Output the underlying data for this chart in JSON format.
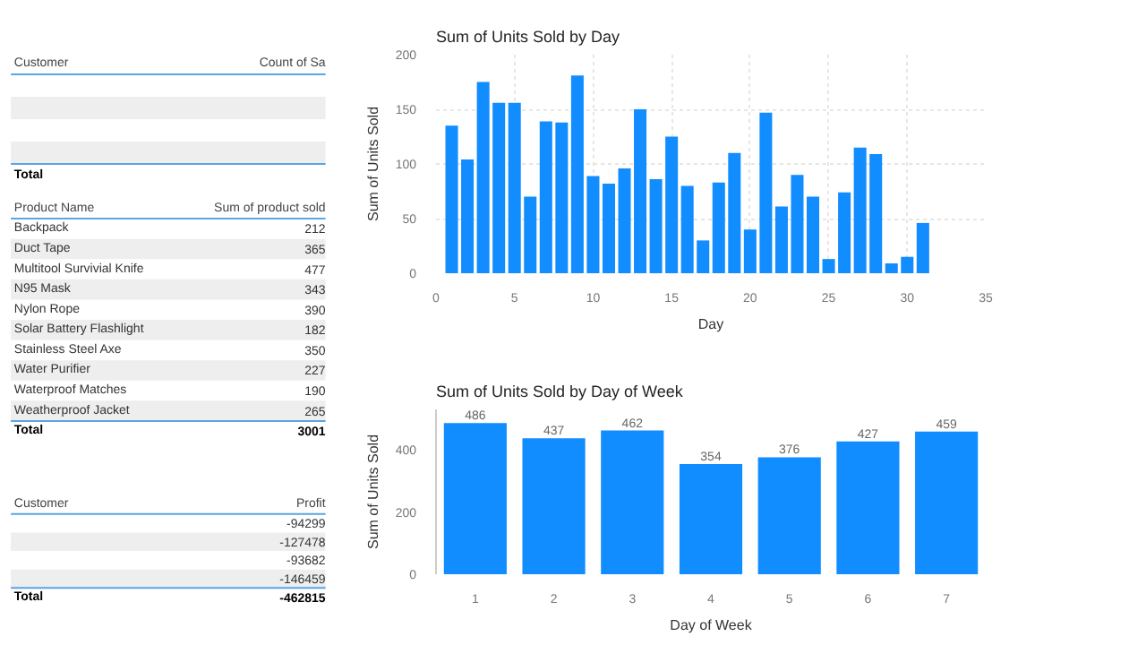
{
  "chart_data": [
    {
      "type": "other",
      "categories": [
        null,
        null,
        null,
        null
      ],
      "annotations": [
        "Customer",
        "Count of Sa",
        "Total"
      ]
    },
    {
      "type": "other",
      "categories": [
        "Backpack",
        "Duct Tape",
        "Multitool Survivial Knife",
        "N95 Mask",
        "Nylon Rope",
        "Solar Battery Flashlight",
        "Stainless Steel Axe",
        "Water Purifier",
        "Waterproof Matches",
        "Weatherproof Jacket"
      ],
      "values": [
        212,
        365,
        477,
        343,
        390,
        182,
        350,
        227,
        190,
        265
      ],
      "data_labels": true,
      "annotations": [
        "Product Name",
        "Sum of product sold",
        "Total",
        "3001"
      ]
    },
    {
      "type": "other",
      "categories": [
        null,
        null,
        null,
        null
      ],
      "values": [
        -94299,
        -127478,
        -93682,
        -146459
      ],
      "data_labels": true,
      "annotations": [
        "Customer",
        "Profit",
        "Total",
        "-462815"
      ]
    },
    {
      "type": "bar",
      "title": "Sum of Units Sold by Day",
      "xlabel": "Day",
      "ylabel": "Sum of Units Sold",
      "x": [
        1,
        2,
        3,
        4,
        5,
        6,
        7,
        8,
        9,
        10,
        11,
        12,
        13,
        14,
        15,
        16,
        17,
        18,
        19,
        20,
        21,
        22,
        23,
        24,
        25,
        26,
        27,
        28,
        29,
        30,
        31
      ],
      "values": [
        135,
        104,
        175,
        156,
        156,
        70,
        139,
        138,
        181,
        89,
        82,
        96,
        150,
        86,
        125,
        80,
        30,
        83,
        110,
        40,
        147,
        61,
        90,
        70,
        13,
        74,
        115,
        109,
        9,
        15,
        46
      ],
      "color": "#118dff",
      "xlim": [
        0,
        35
      ],
      "xticks": [
        0,
        5,
        10,
        15,
        20,
        25,
        30,
        35
      ],
      "ylim": [
        0,
        200
      ],
      "yticks": [
        0,
        50,
        100,
        150,
        200
      ],
      "grid": true
    },
    {
      "type": "bar",
      "title": "Sum of Units Sold by Day of Week",
      "xlabel": "Day of Week",
      "ylabel": "Sum of Units Sold",
      "categories": [
        "1",
        "2",
        "3",
        "4",
        "5",
        "6",
        "7"
      ],
      "values": [
        486,
        437,
        462,
        354,
        376,
        427,
        459
      ],
      "color": "#118dff",
      "ylim": [
        0,
        530
      ],
      "yticks": [
        0,
        200,
        400
      ],
      "data_labels": true
    }
  ]
}
